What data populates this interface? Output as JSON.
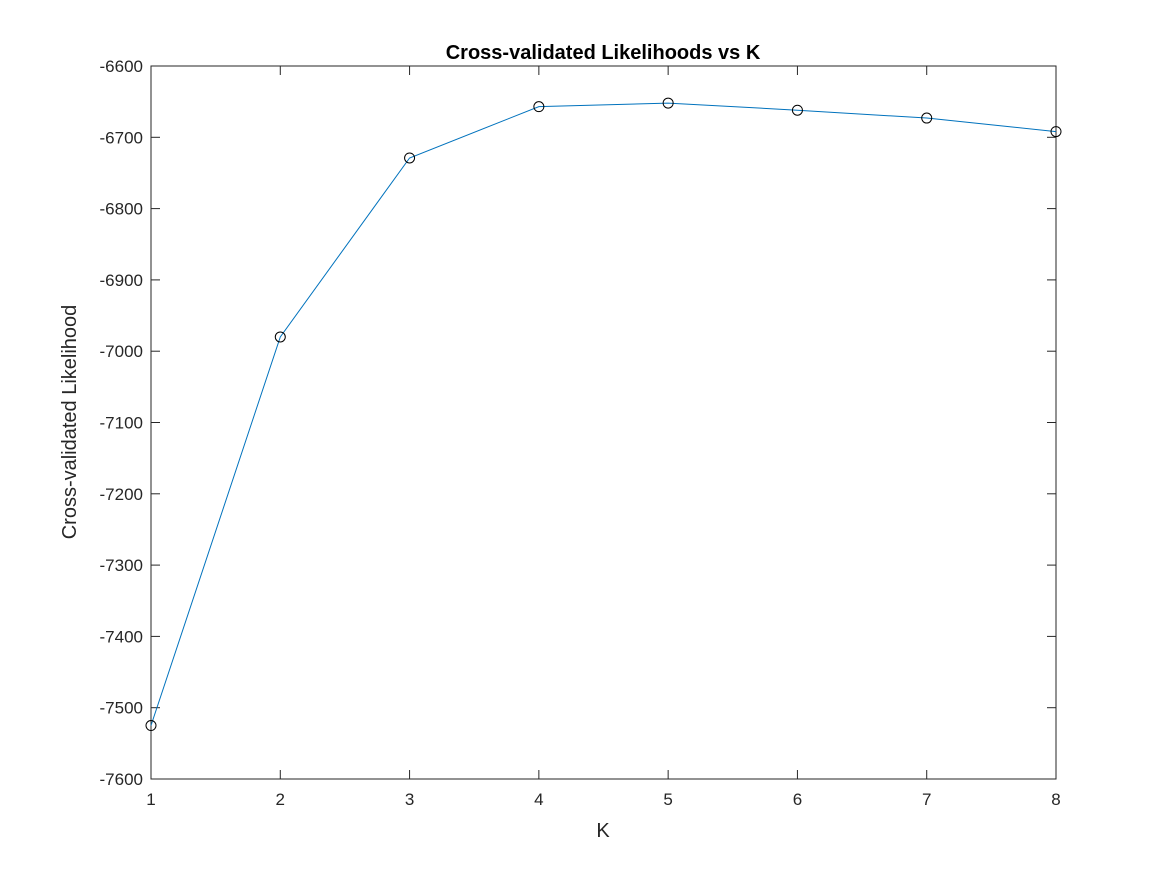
{
  "chart_data": {
    "type": "line",
    "title": "Cross-validated Likelihoods vs K",
    "xlabel": "K",
    "ylabel": "Cross-validated Likelihood",
    "xlim": [
      1,
      8
    ],
    "ylim": [
      -7600,
      -6600
    ],
    "xticks": [
      1,
      2,
      3,
      4,
      5,
      6,
      7,
      8
    ],
    "yticks": [
      -7600,
      -7500,
      -7400,
      -7300,
      -7200,
      -7100,
      -7000,
      -6900,
      -6800,
      -6700,
      -6600
    ],
    "grid": false,
    "legend": "none",
    "marker": "circle",
    "line_color": "#0072BD",
    "marker_color": "#000000",
    "series": [
      {
        "x": [
          1,
          2,
          3,
          4,
          5,
          6,
          7,
          8
        ],
        "values": [
          -7525,
          -6980,
          -6729,
          -6657,
          -6652,
          -6662,
          -6673,
          -6692
        ]
      }
    ]
  }
}
